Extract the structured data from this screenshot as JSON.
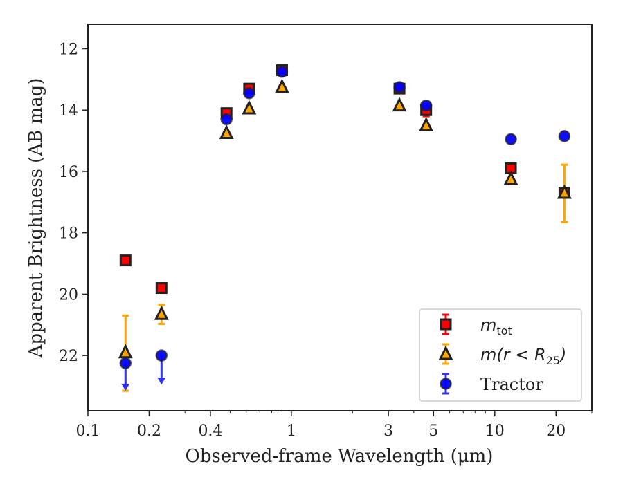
{
  "chart_data": {
    "type": "scatter",
    "xlabel": "Observed-frame Wavelength (μm)",
    "ylabel": "Apparent Brightness (AB mag)",
    "x_scale": "log",
    "y_inverted": true,
    "xlim": [
      0.1,
      30
    ],
    "ylim": [
      23.8,
      11.2
    ],
    "x_ticks": [
      0.1,
      0.2,
      0.4,
      1,
      3,
      5,
      10,
      20
    ],
    "x_tick_labels": [
      "0.1",
      "0.2",
      "0.4",
      "1",
      "3",
      "5",
      "10",
      "20"
    ],
    "y_ticks": [
      12,
      14,
      16,
      18,
      20,
      22
    ],
    "y_tick_labels": [
      "12",
      "14",
      "16",
      "18",
      "20",
      "22"
    ],
    "grid": false,
    "legend_position": "bottom-right",
    "colors": {
      "m_tot": "#ff0000",
      "m_r25": "#ffa500",
      "tractor": "#0000ff",
      "tractor_error": "#3333ee",
      "marker_edge": "#222222"
    },
    "series": [
      {
        "name": "m_tot",
        "legend_label": "mtot",
        "marker": "square",
        "points": [
          {
            "x": 0.153,
            "y": 18.9
          },
          {
            "x": 0.23,
            "y": 19.8
          },
          {
            "x": 0.48,
            "y": 14.1
          },
          {
            "x": 0.62,
            "y": 13.3
          },
          {
            "x": 0.9,
            "y": 12.7,
            "yerr": 0.15
          },
          {
            "x": 3.4,
            "y": 13.3
          },
          {
            "x": 4.6,
            "y": 14.0,
            "yerr": 0.2
          },
          {
            "x": 12.0,
            "y": 15.9
          },
          {
            "x": 22.0,
            "y": 16.7
          }
        ]
      },
      {
        "name": "m(r<R25)",
        "legend_label": "m(r<R25)",
        "marker": "triangle",
        "points": [
          {
            "x": 0.153,
            "y": 21.9,
            "yerr_low": 1.2,
            "yerr_high": 1.25
          },
          {
            "x": 0.23,
            "y": 20.65,
            "yerr_low": 0.3,
            "yerr_high": 0.32
          },
          {
            "x": 0.48,
            "y": 14.75
          },
          {
            "x": 0.62,
            "y": 13.95
          },
          {
            "x": 0.9,
            "y": 13.25
          },
          {
            "x": 3.4,
            "y": 13.85
          },
          {
            "x": 4.6,
            "y": 14.5
          },
          {
            "x": 12.0,
            "y": 16.25
          },
          {
            "x": 22.0,
            "y": 16.7,
            "yerr_low": 0.92,
            "yerr_high": 0.95
          }
        ]
      },
      {
        "name": "Tractor",
        "legend_label": "Tractor",
        "marker": "circle",
        "points": [
          {
            "x": 0.153,
            "y": 22.25,
            "upper_limit": true,
            "limit_to": 23.1
          },
          {
            "x": 0.23,
            "y": 22.0,
            "upper_limit": true,
            "limit_to": 22.9
          },
          {
            "x": 0.48,
            "y": 14.3
          },
          {
            "x": 0.62,
            "y": 13.45
          },
          {
            "x": 0.9,
            "y": 12.75
          },
          {
            "x": 3.4,
            "y": 13.25
          },
          {
            "x": 4.6,
            "y": 13.85
          },
          {
            "x": 12.0,
            "y": 14.95
          },
          {
            "x": 22.0,
            "y": 14.85
          }
        ]
      }
    ]
  }
}
